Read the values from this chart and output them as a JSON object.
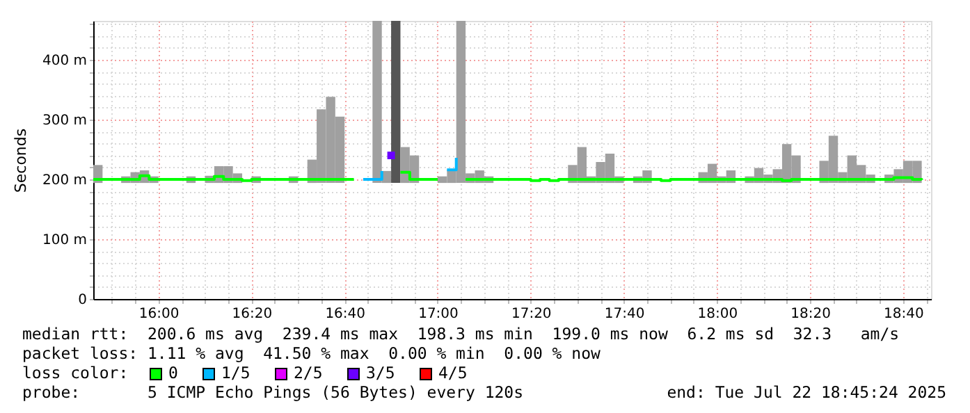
{
  "chart_data": {
    "type": "bar",
    "ylabel": "Seconds",
    "legend_title": "loss color:",
    "legend": "bottom",
    "grid": true,
    "xlim": [
      "2025-07-22T15:46",
      "2025-07-22T18:46"
    ],
    "xticks": [
      {
        "value": "2025-07-22T15:50",
        "label": null
      },
      {
        "value": "2025-07-22T15:55",
        "label": null
      },
      {
        "value": "2025-07-22T16:00",
        "label": "16:00"
      },
      {
        "value": "2025-07-22T16:05",
        "label": null
      },
      {
        "value": "2025-07-22T16:10",
        "label": null
      },
      {
        "value": "2025-07-22T16:15",
        "label": null
      },
      {
        "value": "2025-07-22T16:20",
        "label": "16:20"
      },
      {
        "value": "2025-07-22T16:25",
        "label": null
      },
      {
        "value": "2025-07-22T16:30",
        "label": null
      },
      {
        "value": "2025-07-22T16:35",
        "label": null
      },
      {
        "value": "2025-07-22T16:40",
        "label": "16:40"
      },
      {
        "value": "2025-07-22T16:45",
        "label": null
      },
      {
        "value": "2025-07-22T16:50",
        "label": null
      },
      {
        "value": "2025-07-22T16:55",
        "label": null
      },
      {
        "value": "2025-07-22T17:00",
        "label": "17:00"
      },
      {
        "value": "2025-07-22T17:05",
        "label": null
      },
      {
        "value": "2025-07-22T17:10",
        "label": null
      },
      {
        "value": "2025-07-22T17:15",
        "label": null
      },
      {
        "value": "2025-07-22T17:20",
        "label": "17:20"
      },
      {
        "value": "2025-07-22T17:25",
        "label": null
      },
      {
        "value": "2025-07-22T17:30",
        "label": null
      },
      {
        "value": "2025-07-22T17:35",
        "label": null
      },
      {
        "value": "2025-07-22T17:40",
        "label": "17:40"
      },
      {
        "value": "2025-07-22T17:45",
        "label": null
      },
      {
        "value": "2025-07-22T17:50",
        "label": null
      },
      {
        "value": "2025-07-22T17:55",
        "label": null
      },
      {
        "value": "2025-07-22T18:00",
        "label": "18:00"
      },
      {
        "value": "2025-07-22T18:05",
        "label": null
      },
      {
        "value": "2025-07-22T18:10",
        "label": null
      },
      {
        "value": "2025-07-22T18:15",
        "label": null
      },
      {
        "value": "2025-07-22T18:20",
        "label": "18:20"
      },
      {
        "value": "2025-07-22T18:25",
        "label": null
      },
      {
        "value": "2025-07-22T18:30",
        "label": null
      },
      {
        "value": "2025-07-22T18:35",
        "label": null
      },
      {
        "value": "2025-07-22T18:40",
        "label": "18:40"
      },
      {
        "value": "2025-07-22T18:45",
        "label": null
      }
    ],
    "ylim": [
      0,
      465
    ],
    "yticks": [
      0,
      {
        "value": 20,
        "label": null
      },
      {
        "value": 40,
        "label": null
      },
      {
        "value": 60,
        "label": null
      },
      {
        "value": 80,
        "label": null
      },
      {
        "value": 100,
        "label": "100 m"
      },
      {
        "value": 120,
        "label": null
      },
      {
        "value": 140,
        "label": null
      },
      {
        "value": 160,
        "label": null
      },
      {
        "value": 180,
        "label": null
      },
      {
        "value": 200,
        "label": "200 m"
      },
      {
        "value": 220,
        "label": null
      },
      {
        "value": 240,
        "label": null
      },
      {
        "value": 260,
        "label": null
      },
      {
        "value": 280,
        "label": null
      },
      {
        "value": 300,
        "label": "300 m"
      },
      {
        "value": 320,
        "label": null
      },
      {
        "value": 340,
        "label": null
      },
      {
        "value": 360,
        "label": null
      },
      {
        "value": 380,
        "label": null
      },
      {
        "value": 400,
        "label": "400 m"
      },
      {
        "value": 420,
        "label": null
      },
      {
        "value": 440,
        "label": null
      },
      {
        "value": 460,
        "label": null
      }
    ],
    "series": [
      {
        "x": [
          "2025-07-22T15:46",
          "2025-07-22T15:52",
          "2025-07-22T15:54",
          "2025-07-22T15:56",
          "2025-07-22T15:58",
          "2025-07-22T16:06",
          "2025-07-22T16:10",
          "2025-07-22T16:12",
          "2025-07-22T16:14",
          "2025-07-22T16:16",
          "2025-07-22T16:20",
          "2025-07-22T16:28",
          "2025-07-22T16:32",
          "2025-07-22T16:34",
          "2025-07-22T16:36",
          "2025-07-22T16:38",
          "2025-07-22T16:46",
          "2025-07-22T16:48",
          "2025-07-22T16:50",
          "2025-07-22T16:52",
          "2025-07-22T16:54",
          "2025-07-22T17:00",
          "2025-07-22T17:02",
          "2025-07-22T17:04",
          "2025-07-22T17:06",
          "2025-07-22T17:08",
          "2025-07-22T17:10",
          "2025-07-22T17:28",
          "2025-07-22T17:30",
          "2025-07-22T17:32",
          "2025-07-22T17:34",
          "2025-07-22T17:36",
          "2025-07-22T17:38",
          "2025-07-22T17:42",
          "2025-07-22T17:44",
          "2025-07-22T17:56",
          "2025-07-22T17:58",
          "2025-07-22T18:00",
          "2025-07-22T18:02",
          "2025-07-22T18:06",
          "2025-07-22T18:08",
          "2025-07-22T18:10",
          "2025-07-22T18:12",
          "2025-07-22T18:14",
          "2025-07-22T18:16",
          "2025-07-22T18:22",
          "2025-07-22T18:24",
          "2025-07-22T18:26",
          "2025-07-22T18:28",
          "2025-07-22T18:30",
          "2025-07-22T18:32",
          "2025-07-22T18:36",
          "2025-07-22T18:38",
          "2025-07-22T18:40",
          "2025-07-22T18:42"
        ],
        "base": [
          194,
          194,
          194,
          194,
          194,
          194,
          194,
          194,
          194,
          194,
          194,
          194,
          194,
          194,
          194,
          194,
          194,
          194,
          194,
          194,
          194,
          194,
          194,
          194,
          194,
          194,
          194,
          194,
          194,
          194,
          194,
          194,
          194,
          194,
          194,
          194,
          194,
          194,
          194,
          194,
          194,
          194,
          194,
          194,
          194,
          194,
          194,
          194,
          194,
          194,
          194,
          194,
          194,
          194,
          194
        ],
        "colors": [
          "#a0a0a0",
          "#a0a0a0",
          "#a0a0a0",
          "#a0a0a0",
          "#a0a0a0",
          "#a0a0a0",
          "#a0a0a0",
          "#a0a0a0",
          "#a0a0a0",
          "#a0a0a0",
          "#a0a0a0",
          "#a0a0a0",
          "#a0a0a0",
          "#a0a0a0",
          "#a0a0a0",
          "#a0a0a0",
          "#a0a0a0",
          "#a0a0a0",
          "#555555",
          "#a0a0a0",
          "#a0a0a0",
          "#a0a0a0",
          "#a0a0a0",
          "#a0a0a0",
          "#a0a0a0",
          "#a0a0a0",
          "#a0a0a0",
          "#a0a0a0",
          "#a0a0a0",
          "#a0a0a0",
          "#a0a0a0",
          "#a0a0a0",
          "#a0a0a0",
          "#a0a0a0",
          "#a0a0a0",
          "#a0a0a0",
          "#a0a0a0",
          "#a0a0a0",
          "#a0a0a0",
          "#a0a0a0",
          "#a0a0a0",
          "#a0a0a0",
          "#a0a0a0",
          "#a0a0a0",
          "#a0a0a0",
          "#a0a0a0",
          "#a0a0a0",
          "#a0a0a0",
          "#a0a0a0",
          "#a0a0a0",
          "#a0a0a0",
          "#a0a0a0",
          "#a0a0a0",
          "#a0a0a0",
          "#a0a0a0"
        ],
        "values": [
          30,
          11,
          18,
          21,
          11,
          11,
          12,
          28,
          28,
          16,
          11,
          11,
          39,
          123,
          144,
          111,
          271,
          20,
          271,
          60,
          46,
          11,
          22,
          271,
          16,
          21,
          11,
          30,
          60,
          11,
          35,
          49,
          11,
          11,
          21,
          18,
          32,
          11,
          21,
          11,
          25,
          14,
          23,
          65,
          46,
          37,
          79,
          18,
          46,
          30,
          14,
          14,
          23,
          37,
          37
        ]
      },
      {
        "type": "step",
        "name": "0",
        "color": "#00ff00",
        "x": [
          "2025-07-22T15:46",
          "2025-07-22T15:48",
          "2025-07-22T15:50",
          "2025-07-22T15:52",
          "2025-07-22T15:54",
          "2025-07-22T15:56",
          "2025-07-22T15:58",
          "2025-07-22T16:00",
          "2025-07-22T16:02",
          "2025-07-22T16:04",
          "2025-07-22T16:06",
          "2025-07-22T16:08",
          "2025-07-22T16:10",
          "2025-07-22T16:12",
          "2025-07-22T16:14",
          "2025-07-22T16:16",
          "2025-07-22T16:18",
          "2025-07-22T16:20",
          "2025-07-22T16:22",
          "2025-07-22T16:24",
          "2025-07-22T16:26",
          "2025-07-22T16:28",
          "2025-07-22T16:30",
          "2025-07-22T16:32",
          "2025-07-22T16:34",
          "2025-07-22T16:36",
          "2025-07-22T16:38",
          "2025-07-22T16:40",
          "2025-07-22T16:42",
          "2025-07-22T16:52",
          "2025-07-22T16:54",
          "2025-07-22T16:56",
          "2025-07-22T16:58",
          "2025-07-22T17:00",
          "2025-07-22T17:06",
          "2025-07-22T17:08",
          "2025-07-22T17:10",
          "2025-07-22T17:12",
          "2025-07-22T17:14",
          "2025-07-22T17:16",
          "2025-07-22T17:18",
          "2025-07-22T17:20",
          "2025-07-22T17:22",
          "2025-07-22T17:24",
          "2025-07-22T17:26",
          "2025-07-22T17:28",
          "2025-07-22T17:30",
          "2025-07-22T17:32",
          "2025-07-22T17:34",
          "2025-07-22T17:36",
          "2025-07-22T17:38",
          "2025-07-22T17:40",
          "2025-07-22T17:42",
          "2025-07-22T17:44",
          "2025-07-22T17:46",
          "2025-07-22T17:48",
          "2025-07-22T17:50",
          "2025-07-22T17:52",
          "2025-07-22T17:54",
          "2025-07-22T17:56",
          "2025-07-22T17:58",
          "2025-07-22T18:00",
          "2025-07-22T18:02",
          "2025-07-22T18:04",
          "2025-07-22T18:06",
          "2025-07-22T18:08",
          "2025-07-22T18:10",
          "2025-07-22T18:12",
          "2025-07-22T18:14",
          "2025-07-22T18:16",
          "2025-07-22T18:18",
          "2025-07-22T18:20",
          "2025-07-22T18:22",
          "2025-07-22T18:24",
          "2025-07-22T18:26",
          "2025-07-22T18:28",
          "2025-07-22T18:30",
          "2025-07-22T18:32",
          "2025-07-22T18:34",
          "2025-07-22T18:36",
          "2025-07-22T18:38",
          "2025-07-22T18:40",
          "2025-07-22T18:42",
          "2025-07-22T18:44"
        ],
        "values": [
          200,
          200,
          200,
          200,
          200,
          206,
          200,
          200,
          200,
          200,
          200,
          200,
          200,
          205,
          200,
          200,
          198,
          200,
          200,
          200,
          200,
          200,
          200,
          200,
          200,
          200,
          200,
          200,
          200,
          212,
          200,
          200,
          200,
          200,
          200,
          200,
          200,
          200,
          200,
          200,
          200,
          198,
          200,
          198,
          200,
          200,
          200,
          200,
          200,
          200,
          200,
          200,
          200,
          200,
          200,
          198,
          200,
          200,
          200,
          200,
          200,
          200,
          200,
          200,
          200,
          200,
          200,
          200,
          198,
          200,
          200,
          200,
          200,
          200,
          200,
          200,
          200,
          200,
          200,
          200,
          203,
          203,
          200,
          199
        ]
      },
      {
        "type": "step",
        "name": "1/5",
        "color": "#00b8ff",
        "x": [
          "2025-07-22T16:44",
          "2025-07-22T16:46",
          "2025-07-22T16:48",
          "2025-07-22T17:02",
          "2025-07-22T17:04"
        ],
        "values": [
          200,
          200,
          214,
          216,
          236
        ]
      },
      {
        "type": "step",
        "name": "2/5",
        "color": "#e000ff"
      },
      {
        "type": "step",
        "name": "3/5",
        "color": "#6a00ff",
        "marker": "square",
        "x": [
          "2025-07-22T16:50"
        ],
        "values": [
          240
        ]
      },
      {
        "type": "step",
        "name": "4/5",
        "color": "#ff0000"
      }
    ],
    "annotations": [
      "median rtt:  200.6 ms avg  239.4 ms max  198.3 ms min  199.0 ms now  6.2 ms sd  32.3   am/s",
      "packet loss: 1.11 % avg  41.50 % max  0.00 % min  0.00 % now",
      "probe:       5 ICMP Echo Pings (56 Bytes) every 120s",
      "end: Tue Jul 22 18:45:24 2025"
    ]
  }
}
